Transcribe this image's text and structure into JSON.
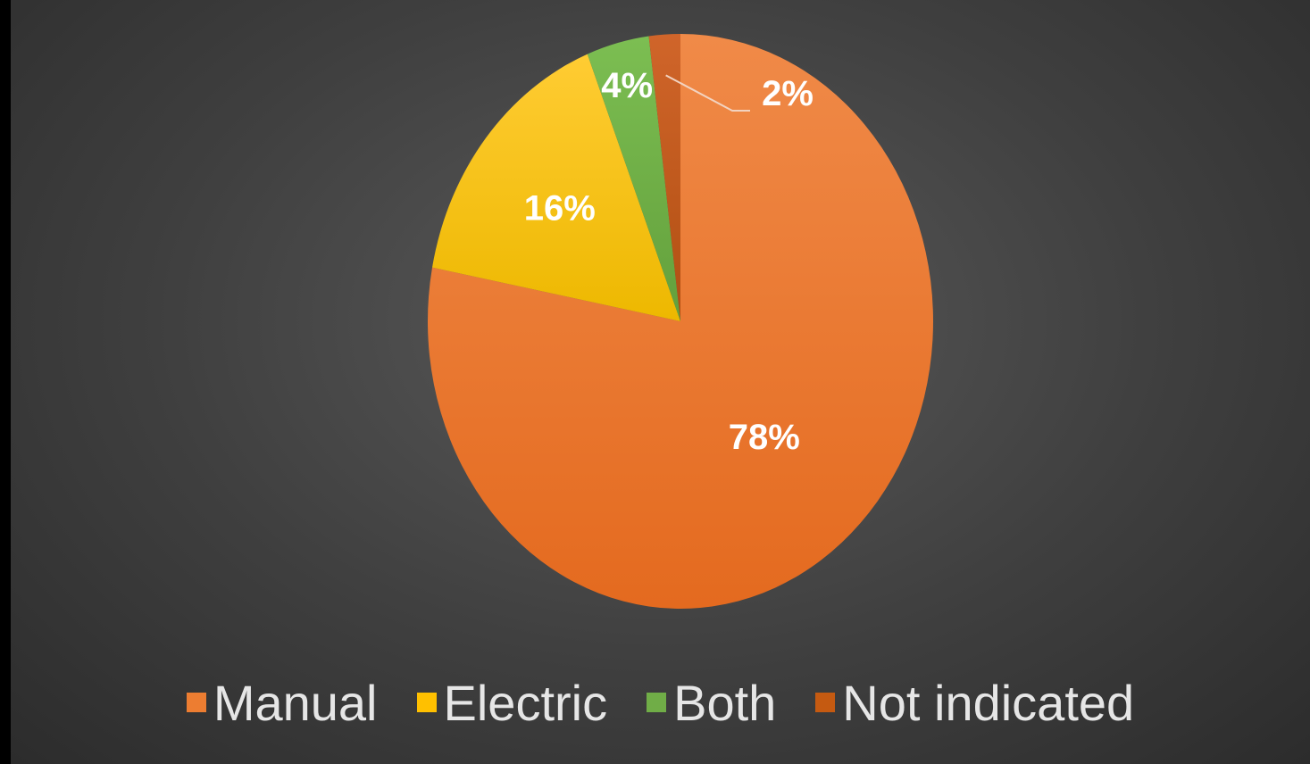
{
  "chart_data": {
    "type": "pie",
    "slices": [
      {
        "name": "Manual",
        "value": 78,
        "label": "78%",
        "color": "#ED7D31"
      },
      {
        "name": "Electric",
        "value": 16,
        "label": "16%",
        "color": "#FFC000"
      },
      {
        "name": "Both",
        "value": 4,
        "label": "4%",
        "color": "#70AD47"
      },
      {
        "name": "Not indicated",
        "value": 2,
        "label": "2%",
        "color": "#C55A11"
      }
    ],
    "start_angle_deg": 0,
    "direction": "clockwise",
    "legend_position": "bottom",
    "background_color": "#404040",
    "label_color": "#FFFFFF"
  },
  "legend": {
    "items": [
      {
        "label": "Manual",
        "color": "#ED7D31"
      },
      {
        "label": "Electric",
        "color": "#FFC000"
      },
      {
        "label": "Both",
        "color": "#70AD47"
      },
      {
        "label": "Not indicated",
        "color": "#C55A11"
      }
    ]
  }
}
